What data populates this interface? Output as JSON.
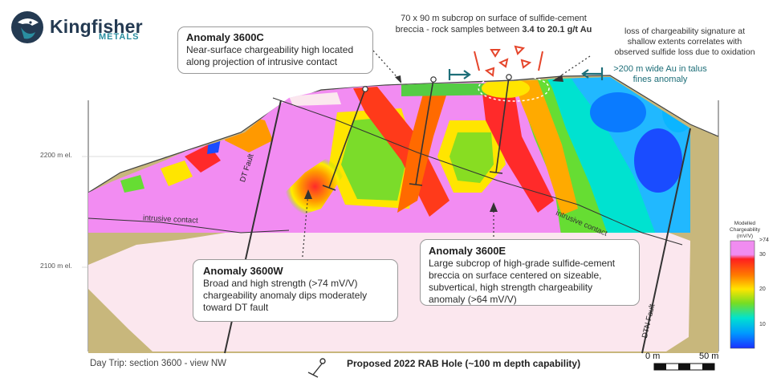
{
  "logo": {
    "name": "Kingfisher",
    "sub": "METALS",
    "icon": "kingfisher-bird-icon"
  },
  "header_note": {
    "line1": "70 x 90 m subcrop on surface of sulfide-cement",
    "line2_prefix": "breccia - rock samples between ",
    "line2_bold": "3.4 to 20.1 g/t Au"
  },
  "oxidation_note": {
    "line1": "loss of chargeability signature at",
    "line2": "shallow extents correlates with",
    "line3": "observed sulfide loss due to oxidation"
  },
  "talus_note": {
    "line1": ">200 m wide Au in talus",
    "line2": "fines anomaly"
  },
  "callouts": {
    "c3600c": {
      "title": "Anomaly 3600C",
      "line1": "Near-surface chargeability high located",
      "line2": "along projection of intrusive contact"
    },
    "c3600w": {
      "title": "Anomaly 3600W",
      "line1": "Broad and high strength (>74 mV/V)",
      "line2": "chargeability anomaly dips moderately",
      "line3": "toward DT fault"
    },
    "c3600e": {
      "title": "Anomaly 3600E",
      "line1": "Large subcrop of high-grade sulfide-cement",
      "line2": "breccia on surface centered on sizeable,",
      "line3": "subvertical, high strength chargeability",
      "line4": "anomaly (>64 mV/V)"
    }
  },
  "section_labels": {
    "elev_2200": "2200 m el.",
    "elev_2100": "2100 m el.",
    "intrusive_left": "intrusive contact",
    "intrusive_right": "intrusive contact",
    "dt_fault": "DT Fault",
    "dtn_fault": "DTN Fault"
  },
  "legend": {
    "title_line1": "Modelled",
    "title_line2": "Chargeability (mV/V)",
    "ticks": [
      ">74",
      "30",
      "20",
      "10"
    ],
    "colors": [
      "#f08cf0",
      "#ff2a2a",
      "#ff9900",
      "#ffff00",
      "#66dd33",
      "#00e6d8",
      "#00a0ff",
      "#1a3cff"
    ]
  },
  "footer": {
    "caption": "Day Trip: section 3600 - view NW",
    "rab_label": "Proposed 2022 RAB Hole (~100 m depth capability)",
    "rab_icon": "drill-hole-icon"
  },
  "scale_bar": {
    "left": "0 m",
    "right": "50 m"
  },
  "colors": {
    "magenta": "#f28cf2",
    "pale_pink": "#fbe7ee",
    "cover": "#c8b77c",
    "red": "#ff2020",
    "teal_arrow": "#1d6e78",
    "cone_red": "#e5452b"
  }
}
